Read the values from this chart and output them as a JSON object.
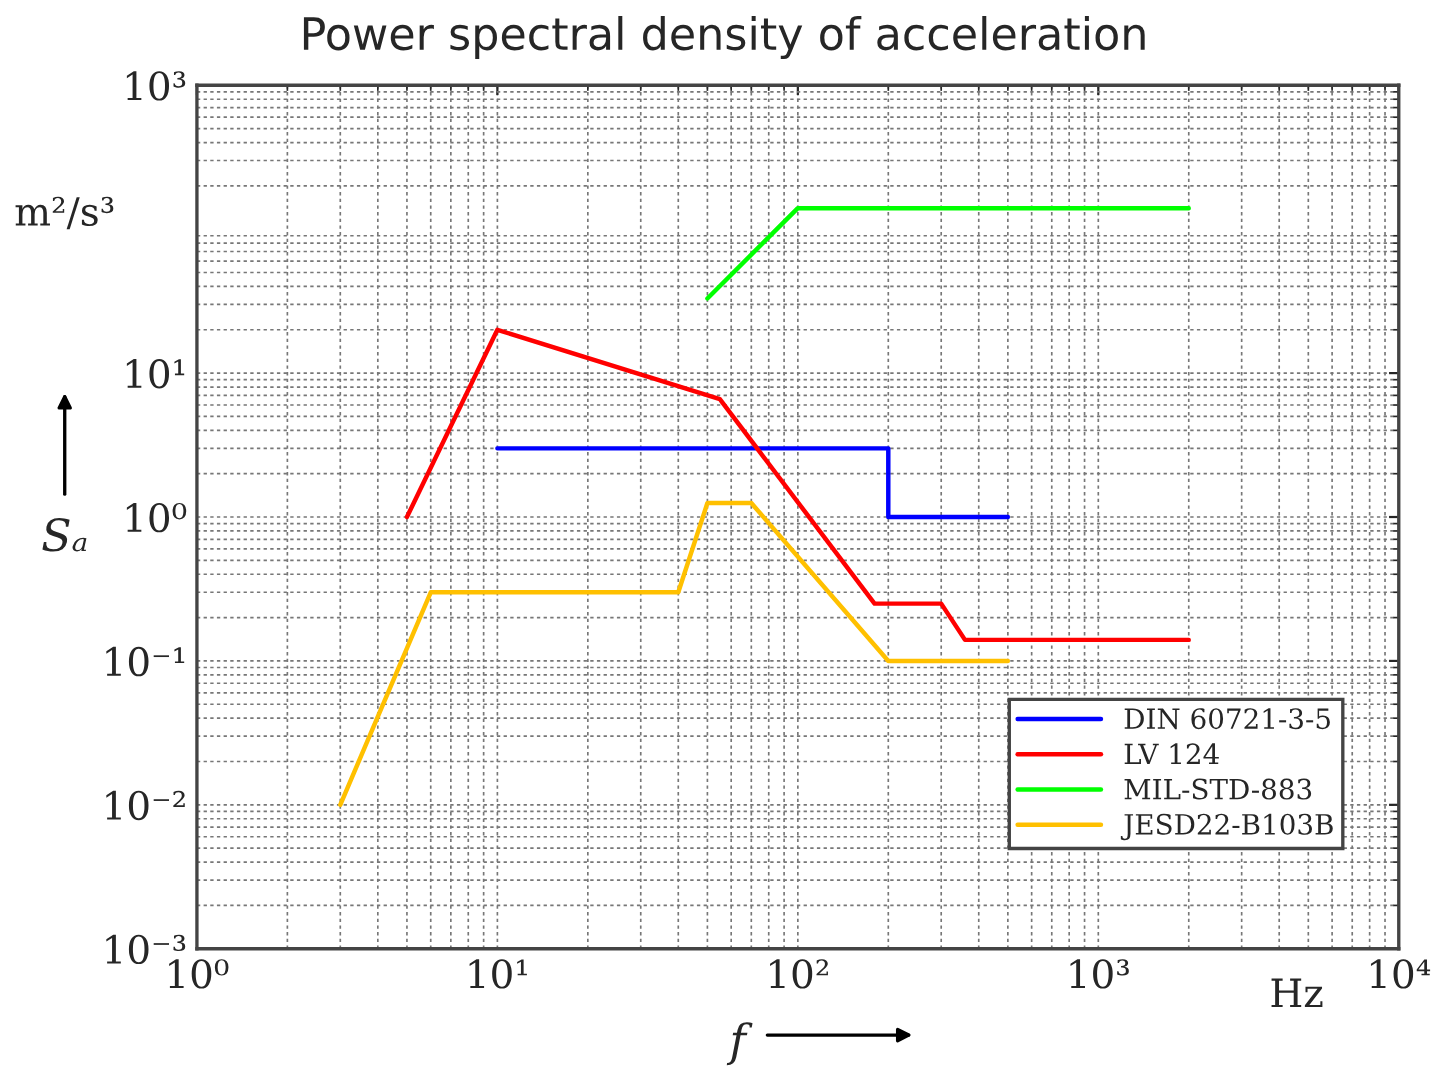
{
  "chart_data": {
    "type": "line",
    "title": "Power spectral density of acceleration",
    "xlabel": "f",
    "ylabel": "Sₐ",
    "annotations": [
      "m²/s³",
      "Hz"
    ],
    "log": "xy",
    "grid": true,
    "legend": "bottom right",
    "xlim": [
      1,
      10000
    ],
    "ylim": [
      0.001,
      1000
    ],
    "xticks": [
      {
        "value": 1,
        "label": "10⁰"
      },
      {
        "value": 10,
        "label": "10¹"
      },
      {
        "value": 100,
        "label": "10²"
      },
      {
        "value": 1000,
        "label": "10³"
      },
      {
        "value": 10000,
        "label": "10⁴"
      }
    ],
    "yticks": [
      {
        "value": 0.001,
        "label": "10⁻³"
      },
      {
        "value": 0.01,
        "label": "10⁻²"
      },
      {
        "value": 0.1,
        "label": "10⁻¹"
      },
      {
        "value": 1,
        "label": "10⁰"
      },
      {
        "value": 10,
        "label": "10¹"
      },
      {
        "value": 1000,
        "label": "10³"
      }
    ],
    "series": [
      {
        "name": "DIN 60721-3-5",
        "color": "#0000ff",
        "x": [
          10,
          200,
          200,
          500
        ],
        "values": [
          3,
          3,
          1,
          1
        ]
      },
      {
        "name": "LV 124",
        "color": "#ff0000",
        "x": [
          5,
          10,
          55,
          180,
          300,
          360,
          2000
        ],
        "values": [
          1,
          20,
          6.6,
          0.25,
          0.25,
          0.14,
          0.14
        ]
      },
      {
        "name": "MIL-STD-883",
        "color": "#00ff00",
        "x": [
          50,
          100,
          2000
        ],
        "values": [
          33,
          140,
          140
        ]
      },
      {
        "name": "JESD22-B103B",
        "color": "#ffc000",
        "x": [
          3,
          6,
          40,
          50,
          70,
          200,
          500
        ],
        "values": [
          0.01,
          0.3,
          0.3,
          1.25,
          1.25,
          0.1,
          0.1
        ]
      }
    ]
  }
}
